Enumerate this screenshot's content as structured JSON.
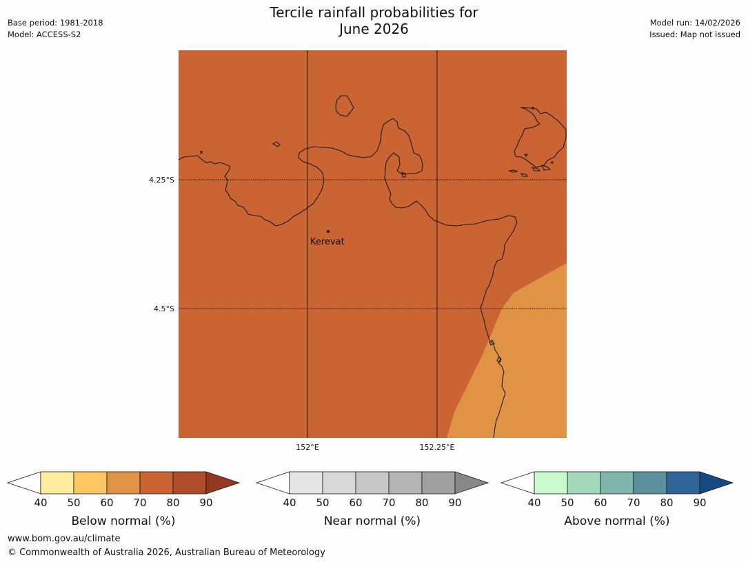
{
  "title_line1": "Tercile rainfall probabilities for",
  "title_line2": "June 2026",
  "meta_left": {
    "base_period": "Base period: 1981-2018",
    "model": "Model: ACCESS-S2"
  },
  "meta_right": {
    "model_run": "Model run: 14/02/2026",
    "issued": "Issued: Map not issued"
  },
  "map": {
    "region_fill_color": "#ca6432",
    "secondary_fill_color": "#e09344",
    "coastline_color": "#1a1a1a",
    "gridline_style": "dotted",
    "lat_labels": [
      "4.25°S",
      "4.5°S"
    ],
    "lon_labels": [
      "152°E",
      "152.25°E"
    ],
    "places": [
      {
        "name": "Kerevat"
      }
    ]
  },
  "colorbars": [
    {
      "label": "Below normal (%)",
      "ticks": [
        "40",
        "50",
        "60",
        "70",
        "80",
        "90"
      ],
      "under_color": "#ffffff",
      "colors": [
        "#feeca0",
        "#fdc864",
        "#e09344",
        "#ca6432",
        "#ae4b2a"
      ],
      "over_color": "#953821"
    },
    {
      "label": "Near normal (%)",
      "ticks": [
        "40",
        "50",
        "60",
        "70",
        "80",
        "90"
      ],
      "under_color": "#ffffff",
      "colors": [
        "#e6e6e6",
        "#d8d8d8",
        "#c8c8c8",
        "#b4b4b4",
        "#a0a0a0"
      ],
      "over_color": "#888888"
    },
    {
      "label": "Above normal (%)",
      "ticks": [
        "40",
        "50",
        "60",
        "70",
        "80",
        "90"
      ],
      "under_color": "#ffffff",
      "colors": [
        "#c9fbcd",
        "#a3d9bb",
        "#80b5ab",
        "#5b919e",
        "#2f6598"
      ],
      "over_color": "#164a85"
    }
  ],
  "footer": {
    "website": "www.bom.gov.au/climate",
    "copyright": "© Commonwealth of Australia 2026, Australian Bureau of Meteorology"
  }
}
